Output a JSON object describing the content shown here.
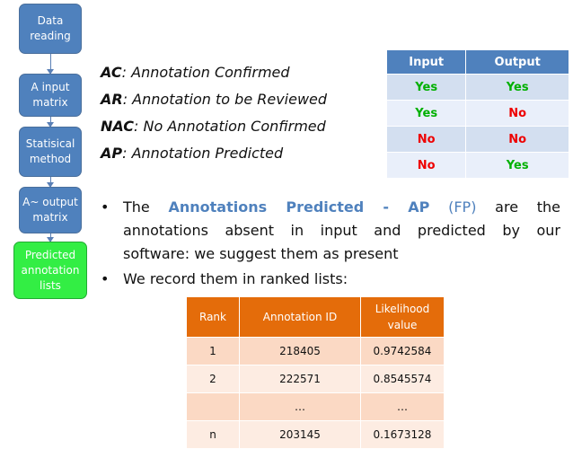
{
  "flow": {
    "steps": [
      {
        "lines": [
          "Data",
          "reading"
        ]
      },
      {
        "lines": [
          "A input",
          "matrix"
        ]
      },
      {
        "lines": [
          "Statisical",
          "method"
        ]
      },
      {
        "lines": [
          "A~ output",
          "matrix"
        ]
      },
      {
        "lines": [
          "Predicted",
          "annotation",
          "lists"
        ]
      }
    ],
    "highlight_color": "#33ee44",
    "box_color": "#4f81bd"
  },
  "definitions": [
    {
      "abbr": "AC",
      "text": ": Annotation Confirmed"
    },
    {
      "abbr": "AR",
      "text": ": Annotation to be Reviewed"
    },
    {
      "abbr": "NAC",
      "text": ": No Annotation Confirmed"
    },
    {
      "abbr": "AP",
      "text": ": Annotation Predicted"
    }
  ],
  "io_table": {
    "headers": [
      "Input",
      "Output"
    ],
    "rows": [
      [
        "Yes",
        "Yes"
      ],
      [
        "Yes",
        "No"
      ],
      [
        "No",
        "No"
      ],
      [
        "No",
        "Yes"
      ]
    ],
    "yes_color": "#00b000",
    "no_color": "#ee0000"
  },
  "bullets": {
    "b1": {
      "prefix": "The",
      "highlight": "Annotations Predicted - AP",
      "paren": "(FP)",
      "rest1": "are the",
      "line2": "annotations absent in input and predicted by our",
      "line3": "software: we suggest them as present"
    },
    "b2": {
      "text": "We record them in ranked lists:"
    }
  },
  "rank_table": {
    "headers": [
      "Rank",
      "Annotation ID",
      "Likelihood value"
    ],
    "rows": [
      [
        "1",
        "218405",
        "0.9742584"
      ],
      [
        "2",
        "222571",
        "0.8545574"
      ],
      [
        "",
        "…",
        "…"
      ],
      [
        "n",
        "203145",
        "0.1673128"
      ]
    ],
    "header_color": "#e46c0a"
  }
}
